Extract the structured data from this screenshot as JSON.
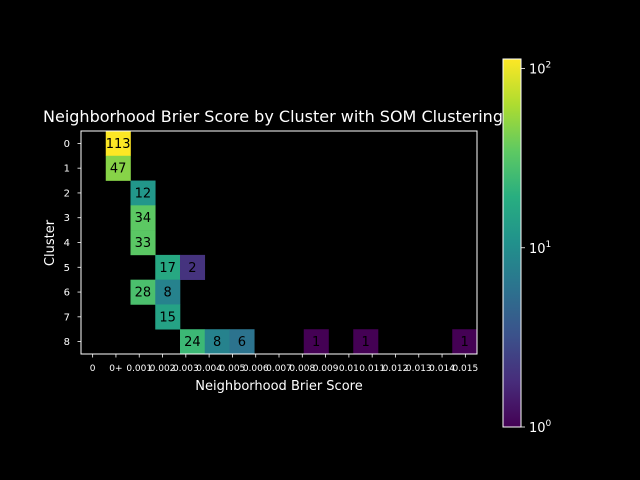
{
  "chart_data": {
    "type": "heatmap",
    "title": "Neighborhood Brier Score by Cluster with SOM Clustering",
    "xlabel": "Neighborhood Brier Score",
    "ylabel": "Cluster",
    "x_tick_labels": [
      "0",
      "0+",
      "0.001",
      "0.002",
      "0.003",
      "0.004",
      "0.005",
      "0.006",
      "0.007",
      "0.008",
      "0.009",
      "0.01",
      "0.011",
      "0.012",
      "0.013",
      "0.014",
      "0.015"
    ],
    "y_tick_labels": [
      "0",
      "1",
      "2",
      "3",
      "4",
      "5",
      "6",
      "7",
      "8"
    ],
    "cells": [
      {
        "row": 0,
        "col": 1,
        "value": 113
      },
      {
        "row": 1,
        "col": 1,
        "value": 47
      },
      {
        "row": 2,
        "col": 2,
        "value": 12
      },
      {
        "row": 3,
        "col": 2,
        "value": 34
      },
      {
        "row": 4,
        "col": 2,
        "value": 33
      },
      {
        "row": 5,
        "col": 3,
        "value": 17
      },
      {
        "row": 5,
        "col": 4,
        "value": 2
      },
      {
        "row": 6,
        "col": 2,
        "value": 28
      },
      {
        "row": 6,
        "col": 3,
        "value": 8
      },
      {
        "row": 7,
        "col": 3,
        "value": 15
      },
      {
        "row": 8,
        "col": 4,
        "value": 24
      },
      {
        "row": 8,
        "col": 5,
        "value": 8
      },
      {
        "row": 8,
        "col": 6,
        "value": 6
      },
      {
        "row": 8,
        "col": 9,
        "value": 1
      },
      {
        "row": 8,
        "col": 11,
        "value": 1
      },
      {
        "row": 8,
        "col": 15,
        "value": 1
      }
    ],
    "color_scale": "log",
    "colormap": "viridis",
    "colorbar_range": [
      1,
      113
    ],
    "colorbar_ticks": [
      {
        "base": "10",
        "exp": "0",
        "value": 1
      },
      {
        "base": "10",
        "exp": "1",
        "value": 10
      },
      {
        "base": "10",
        "exp": "2",
        "value": 100
      }
    ],
    "background": "#000000",
    "text_color": "#ffffff"
  }
}
